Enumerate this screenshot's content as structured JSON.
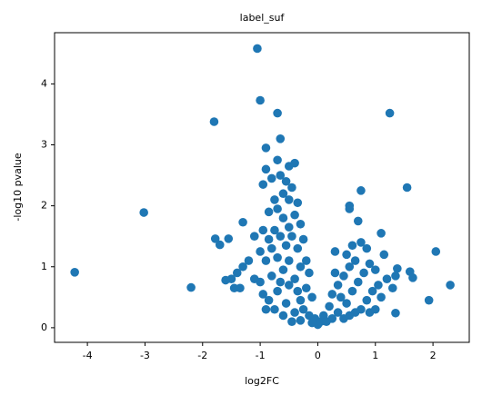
{
  "chart_data": {
    "type": "scatter",
    "title": "label_suf",
    "x_label": "log2FC",
    "y_label": "-log10 pvalue",
    "color": "#1f77b4",
    "xlim": [
      -4.57,
      2.63
    ],
    "ylim": [
      -0.24,
      4.84
    ],
    "xticks": [
      -4,
      -3,
      -2,
      -1,
      0,
      1,
      2
    ],
    "yticks": [
      0,
      1,
      2,
      3,
      4
    ],
    "x": [
      -4.22,
      -3.02,
      -2.2,
      -1.8,
      -1.78,
      -1.7,
      -1.55,
      -1.3,
      -1.0,
      -1.05,
      -0.7,
      -0.65,
      -0.9,
      1.25,
      1.55,
      2.05,
      2.3,
      1.93,
      1.35,
      1.6,
      1.65,
      1.38,
      1.1,
      0.75,
      0.55,
      -0.9,
      -0.7,
      -0.4,
      -0.5,
      -0.95,
      -0.8,
      -0.65,
      -0.55,
      -0.45,
      -0.6,
      -0.75,
      -0.5,
      -0.35,
      -0.85,
      -0.7,
      -0.4,
      -0.6,
      -0.3,
      -0.5,
      -0.75,
      -0.95,
      -1.1,
      -0.85,
      -0.65,
      -0.45,
      -0.25,
      -0.55,
      -0.35,
      -0.8,
      -1.0,
      -1.2,
      -1.3,
      -1.4,
      -1.5,
      -1.6,
      -1.45,
      -1.35,
      -1.1,
      -0.9,
      -0.7,
      -0.5,
      -0.3,
      -0.15,
      -0.6,
      -0.8,
      -1.0,
      -0.95,
      -0.85,
      -0.7,
      -0.5,
      -0.4,
      -0.2,
      -0.1,
      -0.3,
      -0.55,
      -0.75,
      -0.6,
      -0.4,
      -0.25,
      -0.15,
      -0.05,
      0.0,
      0.05,
      -0.1,
      0.1,
      -0.3,
      -0.45,
      0.2,
      0.25,
      0.35,
      0.45,
      0.55,
      0.65,
      0.3,
      0.4,
      0.5,
      0.6,
      0.7,
      0.8,
      0.9,
      1.0,
      1.05,
      0.95,
      0.85,
      0.75,
      0.65,
      0.55,
      0.45,
      0.35,
      0.25,
      0.15,
      1.1,
      1.2,
      0.6,
      0.75,
      0.85,
      0.7,
      0.55,
      0.3,
      0.5,
      1.3,
      0.9,
      1.0,
      1.15,
      -0.2,
      -0.35,
      -0.65,
      -0.9,
      1.35
    ],
    "y": [
      0.91,
      1.89,
      0.66,
      3.38,
      1.46,
      1.36,
      1.46,
      1.73,
      3.73,
      4.58,
      3.52,
      3.1,
      2.95,
      3.52,
      2.3,
      1.25,
      0.7,
      0.45,
      0.24,
      0.92,
      0.82,
      0.97,
      1.55,
      2.25,
      2.0,
      2.6,
      2.75,
      2.7,
      2.65,
      2.35,
      2.45,
      2.5,
      2.4,
      2.3,
      2.2,
      2.1,
      2.1,
      2.05,
      1.9,
      1.95,
      1.85,
      1.8,
      1.7,
      1.65,
      1.6,
      1.6,
      1.5,
      1.45,
      1.5,
      1.5,
      1.45,
      1.35,
      1.3,
      1.3,
      1.25,
      1.1,
      1.0,
      0.9,
      0.8,
      0.78,
      0.65,
      0.65,
      0.8,
      1.1,
      1.15,
      1.1,
      1.0,
      0.9,
      0.95,
      0.85,
      0.75,
      0.55,
      0.45,
      0.6,
      0.7,
      0.8,
      0.65,
      0.5,
      0.45,
      0.4,
      0.3,
      0.2,
      0.25,
      0.3,
      0.2,
      0.15,
      0.05,
      0.1,
      0.08,
      0.2,
      0.12,
      0.1,
      0.35,
      0.55,
      0.7,
      0.85,
      1.0,
      1.1,
      0.9,
      0.5,
      0.4,
      0.6,
      0.75,
      0.9,
      1.05,
      0.95,
      0.7,
      0.6,
      0.45,
      0.3,
      0.25,
      0.2,
      0.15,
      0.25,
      0.15,
      0.1,
      0.5,
      0.8,
      1.35,
      1.4,
      1.3,
      1.75,
      1.95,
      1.25,
      1.2,
      0.65,
      0.25,
      0.3,
      1.2,
      1.1,
      0.6,
      0.75,
      0.3,
      0.85
    ]
  }
}
